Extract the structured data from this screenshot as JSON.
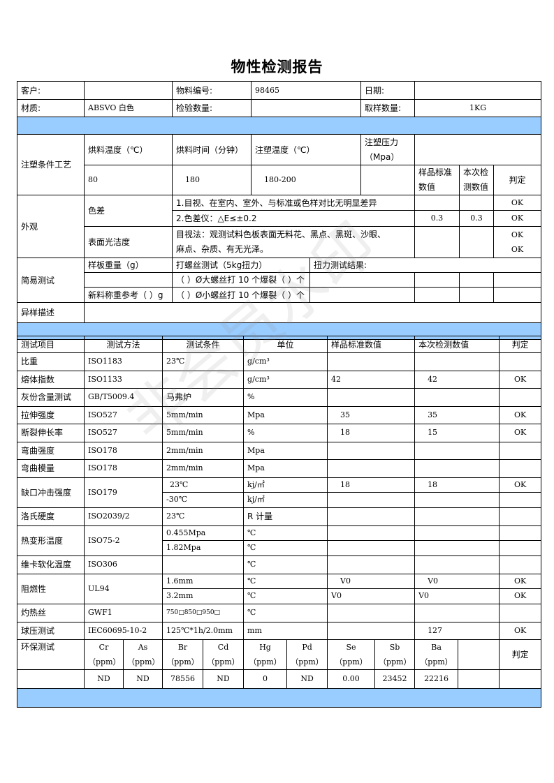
{
  "title": "物性检测报告",
  "header": {
    "customer_label": "客户:",
    "customer": "",
    "material_no_label": "物料编号:",
    "material_no": "98465",
    "date_label": "日期:",
    "date": "",
    "material_label": "材质:",
    "material": "ABSVO 白色",
    "inspect_qty_label": "检验数量:",
    "inspect_qty": "",
    "sample_qty_label": "取样数量:",
    "sample_qty": "1KG"
  },
  "molding": {
    "label": "注塑条件工艺",
    "dry_temp_label": "烘料温度（℃）",
    "dry_time_label": "烘料时间（分钟）",
    "mold_temp_label": "注塑温度（℃）",
    "pressure_label": "注塑压力（Mpa）",
    "dry_temp": "80",
    "dry_time": "180",
    "mold_temp": "180-200",
    "pressure": "",
    "std_label": "样品标准数值",
    "this_label": "本次检测数值",
    "verdict_label": "判定"
  },
  "appearance": {
    "label": "外观",
    "color_diff": "色差",
    "item1": "1.目视、在室内、室外、与标准或色样对比无明显差异",
    "item1_verdict": "OK",
    "item2": "2.色差仪：△E≤±0.2",
    "item2_std": "0.3",
    "item2_this": "0.3",
    "item2_verdict": "OK",
    "surface": "表面光洁度",
    "surface_text": "目视法：观测试料色板表面无料花、黑点、黑斑、沙眼、麻点、杂质、有无光泽。",
    "surface_verdict1": "OK",
    "surface_verdict2": "OK"
  },
  "simple": {
    "label": "简易测试",
    "weight_label": "样板重量（g）",
    "screw_label": "打螺丝测试（5kg扭力）",
    "torque_label": "扭力测试结果:",
    "big_screw": "（ ）Ø大螺丝打 10 个爆裂（ ）个",
    "new_weight": "新料称重参考（  ）g",
    "small_screw": "（ ）Ø小螺丝打 10 个爆裂（ ）个"
  },
  "abnormal_label": "异样描述",
  "tests": {
    "headers": [
      "测试项目",
      "测试方法",
      "测试条件",
      "单位",
      "样品标准数值",
      "本次检测数值",
      "判定"
    ],
    "rows": [
      {
        "item": "比重",
        "method": "ISO1183",
        "cond": "23℃",
        "unit": "g/cm³",
        "std": "",
        "this": "",
        "verdict": ""
      },
      {
        "item": "熔体指数",
        "method": "ISO1133",
        "cond": "",
        "unit": "g/cm³",
        "std": "42",
        "this": "42",
        "verdict": "OK"
      },
      {
        "item": "灰份含量测试",
        "method": "GB/T5009.4",
        "cond": "马弗炉",
        "unit": "%",
        "std": "",
        "this": "",
        "verdict": ""
      },
      {
        "item": "拉伸强度",
        "method": "ISO527",
        "cond": "5mm/min",
        "unit": "Mpa",
        "std": "35",
        "this": "35",
        "verdict": "OK"
      },
      {
        "item": "断裂伸长率",
        "method": "ISO527",
        "cond": "5mm/min",
        "unit": "%",
        "std": "18",
        "this": "15",
        "verdict": "OK"
      },
      {
        "item": "弯曲强度",
        "method": "ISO178",
        "cond": "2mm/min",
        "unit": "Mpa",
        "std": "",
        "this": "",
        "verdict": ""
      },
      {
        "item": "弯曲模量",
        "method": "ISO178",
        "cond": "2mm/min",
        "unit": "Mpa",
        "std": "",
        "this": "",
        "verdict": ""
      }
    ],
    "impact": {
      "item": "缺口冲击强度",
      "method": "ISO179",
      "cond1": "23℃",
      "unit1": "kj/㎡",
      "std1": "18",
      "this1": "18",
      "verdict1": "OK",
      "cond2": "-30℃",
      "unit2": "kj/㎡"
    },
    "rockwell": {
      "item": "洛氏硬度",
      "method": "ISO2039/2",
      "cond": "23℃",
      "unit": "R 计量"
    },
    "hdt": {
      "item": "热变形温度",
      "method": "ISO75-2",
      "cond1": "0.455Mpa",
      "cond2": "1.82Mpa",
      "unit": "℃"
    },
    "vicat": {
      "item": "维卡软化温度",
      "method": "ISO306",
      "unit": "℃"
    },
    "flame": {
      "item": "阻燃性",
      "method": "UL94",
      "cond1": "1.6mm",
      "cond2": "3.2mm",
      "unit": "℃",
      "std": "V0",
      "this": "V0",
      "verdict": "OK"
    },
    "glow": {
      "item": "灼热丝",
      "method": "GWF1",
      "cond": "750□850□950□",
      "unit": "℃"
    },
    "ball": {
      "item": "球压测试",
      "method": "IEC60695-10-2",
      "cond": "125℃*1h/2.0mm",
      "unit": "mm",
      "this": "127",
      "verdict": "OK"
    }
  },
  "env": {
    "label": "环保测试",
    "elements": [
      "Cr",
      "As",
      "Br",
      "Cd",
      "Hg",
      "Pd",
      "Se",
      "Sb",
      "Ba"
    ],
    "unit": "（ppm）",
    "values": [
      "ND",
      "ND",
      "78556",
      "ND",
      "0",
      "ND",
      "0.00",
      "23452",
      "22216"
    ],
    "verdict_label": "判定"
  },
  "watermark": "非会员水印",
  "colors": {
    "band": "#99ccff"
  }
}
